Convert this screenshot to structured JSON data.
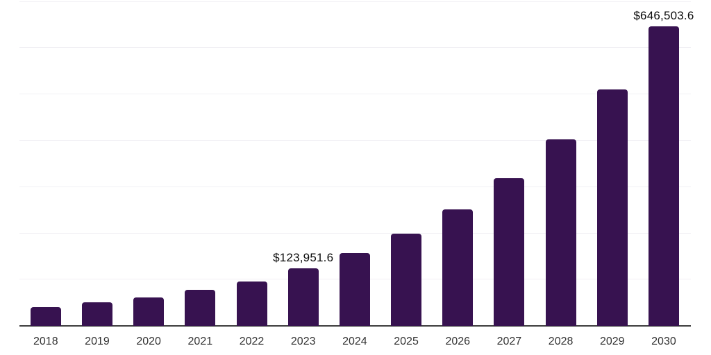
{
  "chart_data": {
    "type": "bar",
    "title": "",
    "xlabel": "",
    "ylabel": "",
    "categories": [
      "2018",
      "2019",
      "2020",
      "2021",
      "2022",
      "2023",
      "2024",
      "2025",
      "2026",
      "2027",
      "2028",
      "2029",
      "2030"
    ],
    "values": [
      40000,
      50400,
      61500,
      77800,
      96500,
      123951.6,
      157000,
      199000,
      252000,
      319300,
      402700,
      511500,
      646503.6
    ],
    "data_labels": {
      "2023": "$123,951.6",
      "2030": "$646,503.6"
    },
    "ylim": [
      0,
      700000
    ],
    "gridline_interval": 100000,
    "grid": true,
    "legend_position": "none",
    "y_axis_labels_visible": false
  },
  "style": {
    "bar_color": "#371250",
    "axis_line_color": "#3d3d3d",
    "gridline_color": "#f1f0f4",
    "tick_label_color": "#333333",
    "data_label_color": "#0a0a0a",
    "background": "#ffffff"
  }
}
